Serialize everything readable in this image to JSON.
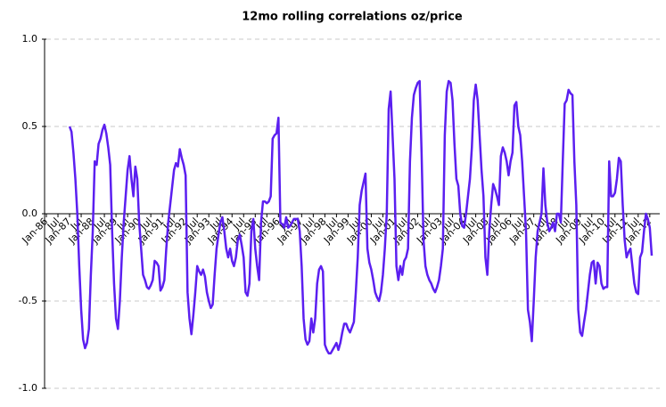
{
  "chart_data": {
    "type": "line",
    "title": "12mo rolling correlations oz/price",
    "categories": [
      "Jan-86",
      null,
      null,
      null,
      null,
      null,
      "Jul",
      null,
      null,
      null,
      null,
      null,
      "Jan-87",
      null,
      null,
      null,
      null,
      null,
      "Jul",
      null,
      null,
      null,
      null,
      null,
      "Jan-88",
      null,
      null,
      null,
      null,
      null,
      "Jul",
      null,
      null,
      null,
      null,
      null,
      "Jan-89",
      null,
      null,
      null,
      null,
      null,
      "Jul",
      null,
      null,
      null,
      null,
      null,
      "Jan-90",
      null,
      null,
      null,
      null,
      null,
      "Jul",
      null,
      null,
      null,
      null,
      null,
      "Jan-91",
      null,
      null,
      null,
      null,
      null,
      "Jul",
      null,
      null,
      null,
      null,
      null,
      "Jan-92",
      null,
      null,
      null,
      null,
      null,
      "Jul",
      null,
      null,
      null,
      null,
      null,
      "Jan-93",
      null,
      null,
      null,
      null,
      null,
      "Jul",
      null,
      null,
      null,
      null,
      null,
      "Jan-94",
      null,
      null,
      null,
      null,
      null,
      "Jul",
      null,
      null,
      null,
      null,
      null,
      "Jan-95",
      null,
      null,
      null,
      null,
      null,
      "Jul",
      null,
      null,
      null,
      null,
      null,
      "Jan-96",
      null,
      null,
      null,
      null,
      null,
      "Jul",
      null,
      null,
      null,
      null,
      null,
      "Jan-97",
      null,
      null,
      null,
      null,
      null,
      "Jul",
      null,
      null,
      null,
      null,
      null,
      "Jan-98",
      null,
      null,
      null,
      null,
      null,
      "Jul",
      null,
      null,
      null,
      null,
      null,
      "Jan-99",
      null,
      null,
      null,
      null,
      null,
      "Jul",
      null,
      null,
      null,
      null,
      null,
      "Jan-00",
      null,
      null,
      null,
      null,
      null,
      "Jul",
      null,
      null,
      null,
      null,
      null,
      "Jan-01",
      null,
      null,
      null,
      null,
      null,
      "Jul",
      null,
      null,
      null,
      null,
      null,
      "Jan-02",
      null,
      null,
      null,
      null,
      null,
      "Jul",
      null,
      null,
      null,
      null,
      null,
      "Jan-03",
      null,
      null,
      null,
      null,
      null,
      "Jul",
      null,
      null,
      null,
      null,
      null,
      "Jan-04",
      null,
      null,
      null,
      null,
      null,
      "Jul",
      null,
      null,
      null,
      null,
      null,
      "Jan-05",
      null,
      null,
      null,
      null,
      null,
      "Jul",
      null,
      null,
      null,
      null,
      null,
      "Jan-06",
      null,
      null,
      null,
      null,
      null,
      "Jul",
      null,
      null,
      null,
      null,
      null,
      "Jan-07",
      null,
      null,
      null,
      null,
      null,
      "Jul",
      null,
      null,
      null,
      null,
      null,
      "Jan-08",
      null,
      null,
      null,
      null,
      null,
      "Jul",
      null,
      null,
      null,
      null,
      null,
      "Jan-09",
      null,
      null,
      null,
      null,
      null,
      "Jul",
      null,
      null,
      null,
      null,
      null,
      "Jan-10",
      null,
      null,
      null,
      null,
      null,
      "Jul",
      null,
      null,
      null,
      null,
      null,
      "Jan-11",
      null,
      null,
      null,
      null,
      null,
      "Jul",
      null,
      null,
      null,
      null,
      null,
      "Jan-12",
      null
    ],
    "series": [
      {
        "color": "#5b1ff0",
        "values": [
          null,
          null,
          null,
          null,
          null,
          null,
          null,
          null,
          null,
          null,
          null,
          null,
          0.5,
          0.47,
          0.35,
          0.2,
          0.0,
          -0.3,
          -0.55,
          -0.72,
          -0.77,
          -0.74,
          -0.66,
          -0.35,
          -0.1,
          0.3,
          0.28,
          0.4,
          0.43,
          0.48,
          0.51,
          0.46,
          0.38,
          0.28,
          -0.1,
          -0.4,
          -0.6,
          -0.66,
          -0.5,
          -0.25,
          -0.05,
          0.1,
          0.25,
          0.33,
          0.2,
          0.1,
          0.27,
          0.2,
          -0.05,
          -0.2,
          -0.35,
          -0.38,
          -0.42,
          -0.43,
          -0.41,
          -0.38,
          -0.27,
          -0.28,
          -0.3,
          -0.44,
          -0.42,
          -0.38,
          -0.2,
          -0.05,
          0.05,
          0.15,
          0.25,
          0.29,
          0.27,
          0.37,
          0.32,
          0.28,
          0.22,
          -0.45,
          -0.6,
          -0.69,
          -0.58,
          -0.45,
          -0.3,
          -0.33,
          -0.35,
          -0.32,
          -0.36,
          -0.45,
          -0.5,
          -0.54,
          -0.52,
          -0.35,
          -0.2,
          -0.12,
          -0.05,
          -0.02,
          -0.1,
          -0.2,
          -0.25,
          -0.2,
          -0.27,
          -0.3,
          -0.25,
          -0.15,
          -0.12,
          -0.18,
          -0.25,
          -0.45,
          -0.47,
          -0.4,
          -0.1,
          -0.03,
          -0.2,
          -0.3,
          -0.38,
          -0.05,
          0.07,
          0.07,
          0.06,
          0.07,
          0.1,
          0.43,
          0.45,
          0.46,
          0.55,
          -0.05,
          -0.06,
          -0.08,
          -0.02,
          -0.08,
          -0.07,
          -0.05,
          -0.03,
          -0.03,
          -0.03,
          -0.1,
          -0.3,
          -0.6,
          -0.72,
          -0.75,
          -0.73,
          -0.6,
          -0.68,
          -0.6,
          -0.4,
          -0.32,
          -0.3,
          -0.33,
          -0.75,
          -0.78,
          -0.8,
          -0.8,
          -0.78,
          -0.76,
          -0.74,
          -0.78,
          -0.74,
          -0.68,
          -0.63,
          -0.63,
          -0.66,
          -0.68,
          -0.65,
          -0.62,
          -0.45,
          -0.25,
          0.05,
          0.13,
          0.18,
          0.23,
          -0.2,
          -0.28,
          -0.32,
          -0.38,
          -0.45,
          -0.48,
          -0.5,
          -0.45,
          -0.35,
          -0.2,
          0.0,
          0.6,
          0.7,
          0.45,
          0.2,
          -0.3,
          -0.38,
          -0.3,
          -0.35,
          -0.27,
          -0.25,
          -0.2,
          0.3,
          0.55,
          0.68,
          0.72,
          0.75,
          0.76,
          0.35,
          -0.15,
          -0.3,
          -0.35,
          -0.38,
          -0.4,
          -0.43,
          -0.45,
          -0.42,
          -0.38,
          -0.3,
          -0.2,
          0.45,
          0.7,
          0.76,
          0.75,
          0.65,
          0.4,
          0.2,
          0.16,
          0.0,
          -0.07,
          -0.08,
          0.0,
          0.1,
          0.2,
          0.38,
          0.65,
          0.74,
          0.65,
          0.45,
          0.25,
          0.1,
          -0.25,
          -0.35,
          -0.1,
          0.05,
          0.17,
          0.14,
          0.1,
          0.05,
          0.33,
          0.38,
          0.35,
          0.3,
          0.22,
          0.3,
          0.35,
          0.62,
          0.64,
          0.5,
          0.45,
          0.3,
          0.1,
          -0.1,
          -0.55,
          -0.62,
          -0.73,
          -0.5,
          -0.25,
          -0.1,
          -0.05,
          0.0,
          0.26,
          0.05,
          -0.05,
          -0.1,
          -0.08,
          -0.05,
          -0.1,
          0.0,
          0.0,
          -0.05,
          0.3,
          0.63,
          0.65,
          0.71,
          0.69,
          0.68,
          0.3,
          0.05,
          -0.55,
          -0.68,
          -0.7,
          -0.62,
          -0.55,
          -0.45,
          -0.35,
          -0.28,
          -0.27,
          -0.4,
          -0.28,
          -0.3,
          -0.4,
          -0.43,
          -0.42,
          -0.42,
          0.3,
          0.1,
          0.1,
          0.12,
          0.2,
          0.32,
          0.3,
          0.05,
          -0.15,
          -0.25,
          -0.22,
          -0.2,
          -0.3,
          -0.4,
          -0.45,
          -0.46,
          -0.25,
          -0.22,
          -0.1,
          0.0,
          -0.03,
          -0.08,
          -0.24
        ]
      }
    ],
    "ylim": [
      -1,
      1
    ],
    "yticks": [
      {
        "value": -1,
        "label": "-1.0"
      },
      {
        "value": -0.5,
        "label": "-0.5"
      },
      {
        "value": 0,
        "label": "0.0"
      },
      {
        "value": 0.5,
        "label": "0.5"
      },
      {
        "value": 1,
        "label": "1.0"
      }
    ],
    "grid": true
  }
}
